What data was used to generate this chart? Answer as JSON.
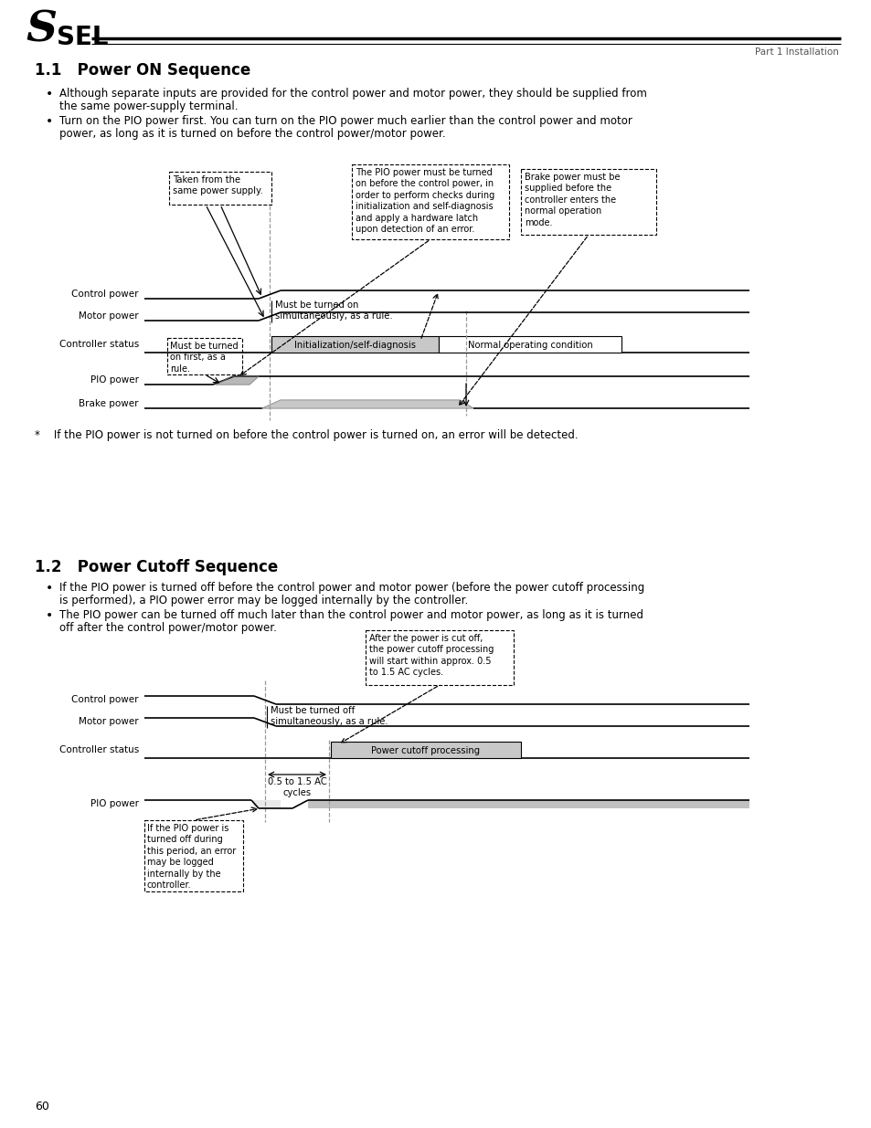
{
  "title_header": "Part 1 Installation",
  "section1_title": "1.1   Power ON Sequence",
  "section2_title": "1.2   Power Cutoff Sequence",
  "footnote": "*    If the PIO power is not turned on before the control power is turned on, an error will be detected.",
  "page_number": "60",
  "bg_color": "#ffffff",
  "d1": {
    "label_ctrl": "Control power",
    "label_motor": "Motor power",
    "label_status": "Controller status",
    "label_pio": "PIO power",
    "label_brake": "Brake power",
    "ann_taken": "Taken from the\nsame power supply.",
    "ann_pio": "The PIO power must be turned\non before the control power, in\norder to perform checks during\ninitialization and self-diagnosis\nand apply a hardware latch\nupon detection of an error.",
    "ann_brake": "Brake power must be\nsupplied before the\ncontroller enters the\nnormal operation\nmode.",
    "ann_simult": "Must be turned on\nsimultaneously, as a rule.",
    "ann_first": "Must be turned\non first, as a\nrule.",
    "status_init": "Initialization/self-diagnosis",
    "status_normal": "Normal operating condition"
  },
  "d2": {
    "label_ctrl": "Control power",
    "label_motor": "Motor power",
    "label_status": "Controller status",
    "label_pio": "PIO power",
    "ann_cutoff": "After the power is cut off,\nthe power cutoff processing\nwill start within approx. 0.5\nto 1.5 AC cycles.",
    "ann_simult": "Must be turned off\nsimultaneously, as a rule.",
    "ann_cycles": "0.5 to 1.5 AC\ncycles",
    "ann_pio_warn": "If the PIO power is\nturned off during\nthis period, an error\nmay be logged\ninternally by the\ncontroller.",
    "status_cutoff": "Power cutoff processing"
  }
}
